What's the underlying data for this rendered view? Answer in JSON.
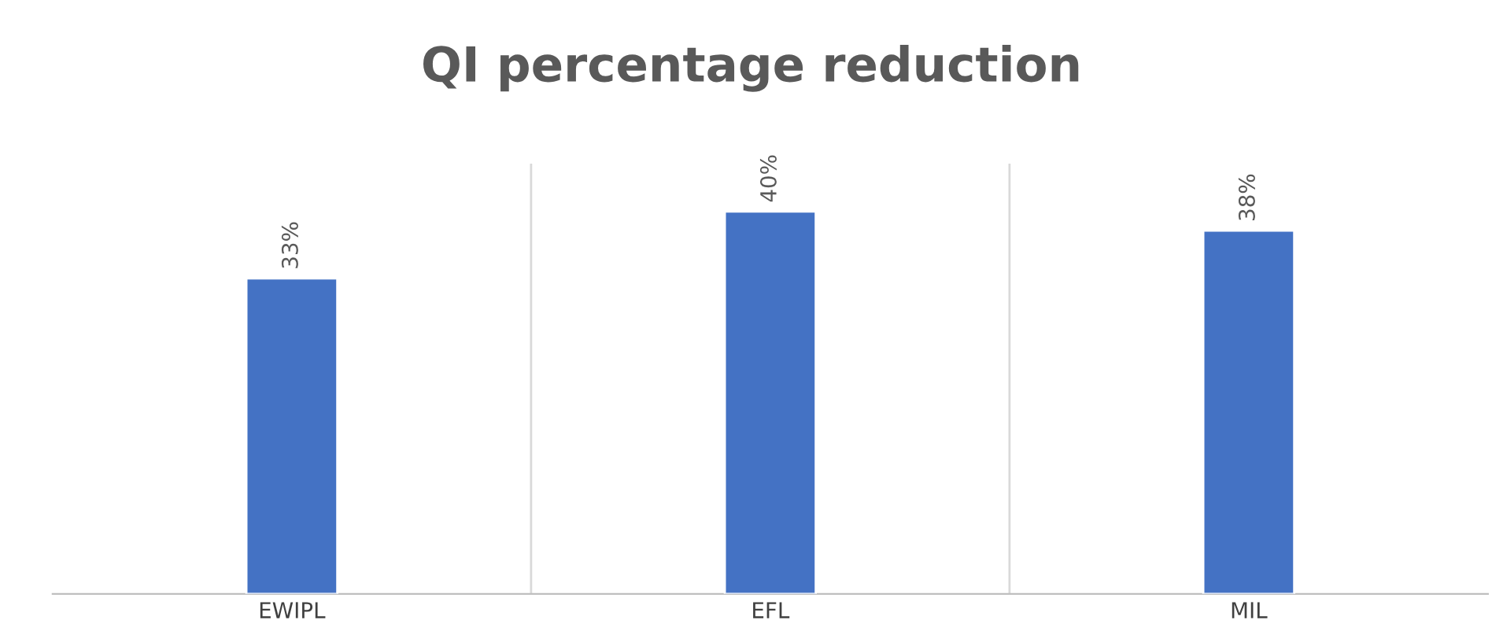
{
  "chart_data": {
    "type": "bar",
    "title": "QI percentage reduction",
    "categories": [
      "EWIPL",
      "EFL",
      "MIL"
    ],
    "values": [
      33,
      40,
      38
    ],
    "value_labels": [
      "33%",
      "40%",
      "38%"
    ],
    "color": "#4472c4",
    "grid": "x",
    "tick_labels": "x"
  }
}
